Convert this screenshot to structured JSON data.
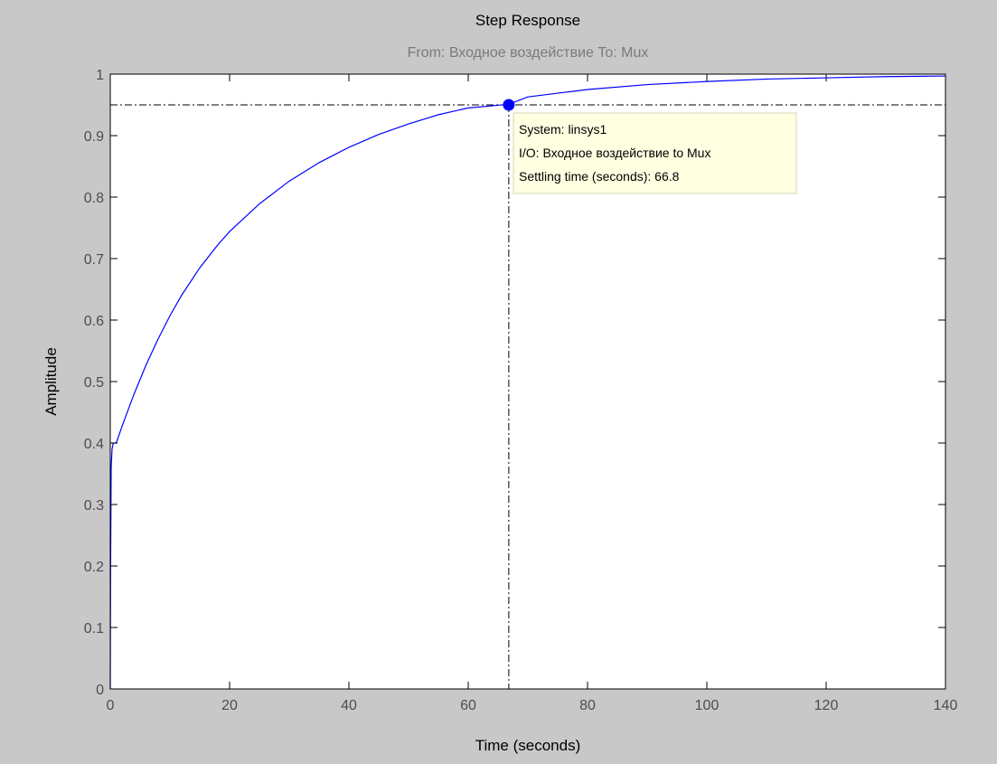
{
  "colors": {
    "figure_background": "#c8c8c8",
    "axes_background": "#ffffff",
    "response_line": "#0000ff",
    "marker": "#0000ff",
    "datatip_background": "#ffffe1",
    "datatip_border": "#d6d6b8",
    "tick_label": "#4d4d4d",
    "subtitle": "#7a7a7a"
  },
  "chart_data": {
    "type": "line",
    "title": "Step Response",
    "subtitle": "From: Входное воздействие  To: Mux",
    "xlabel": "Time (seconds)",
    "ylabel": "Amplitude",
    "xlim": [
      0,
      140
    ],
    "ylim": [
      0,
      1
    ],
    "xticks": [
      0,
      20,
      40,
      60,
      80,
      100,
      120,
      140
    ],
    "xtick_labels": [
      "0",
      "20",
      "40",
      "60",
      "80",
      "100",
      "120",
      "140"
    ],
    "yticks": [
      0,
      0.1,
      0.2,
      0.3,
      0.4,
      0.5,
      0.6,
      0.7,
      0.8,
      0.9,
      1
    ],
    "ytick_labels": [
      "0",
      "0.1",
      "0.2",
      "0.3",
      "0.4",
      "0.5",
      "0.6",
      "0.7",
      "0.8",
      "0.9",
      "1"
    ],
    "grid": false,
    "series": [
      {
        "x": [
          0,
          0.05,
          0.15,
          0.3,
          0.5,
          0.8,
          1,
          2,
          4,
          6,
          8,
          10,
          12,
          15,
          18,
          20,
          25,
          30,
          35,
          40,
          45,
          50,
          55,
          60,
          66.8,
          70,
          75,
          80,
          90,
          100,
          110,
          120,
          130,
          140
        ],
        "y": [
          0,
          0.19,
          0.36,
          0.39,
          0.4,
          0.4,
          0.4,
          0.428,
          0.48,
          0.527,
          0.569,
          0.607,
          0.641,
          0.685,
          0.722,
          0.744,
          0.789,
          0.826,
          0.856,
          0.881,
          0.902,
          0.919,
          0.934,
          0.945,
          0.951,
          0.963,
          0.969,
          0.975,
          0.983,
          0.988,
          0.992,
          0.994,
          0.996,
          0.997
        ]
      }
    ],
    "reference_lines": {
      "steady_state": 1,
      "settling_band": 0.95,
      "settling_time": 66.8
    },
    "marker_point": {
      "x": 66.8,
      "y": 0.95
    },
    "datatip": {
      "lines": [
        "System: linsys1",
        "I/O: Входное воздействие to Mux",
        "Settling time (seconds): 66.8"
      ]
    }
  }
}
